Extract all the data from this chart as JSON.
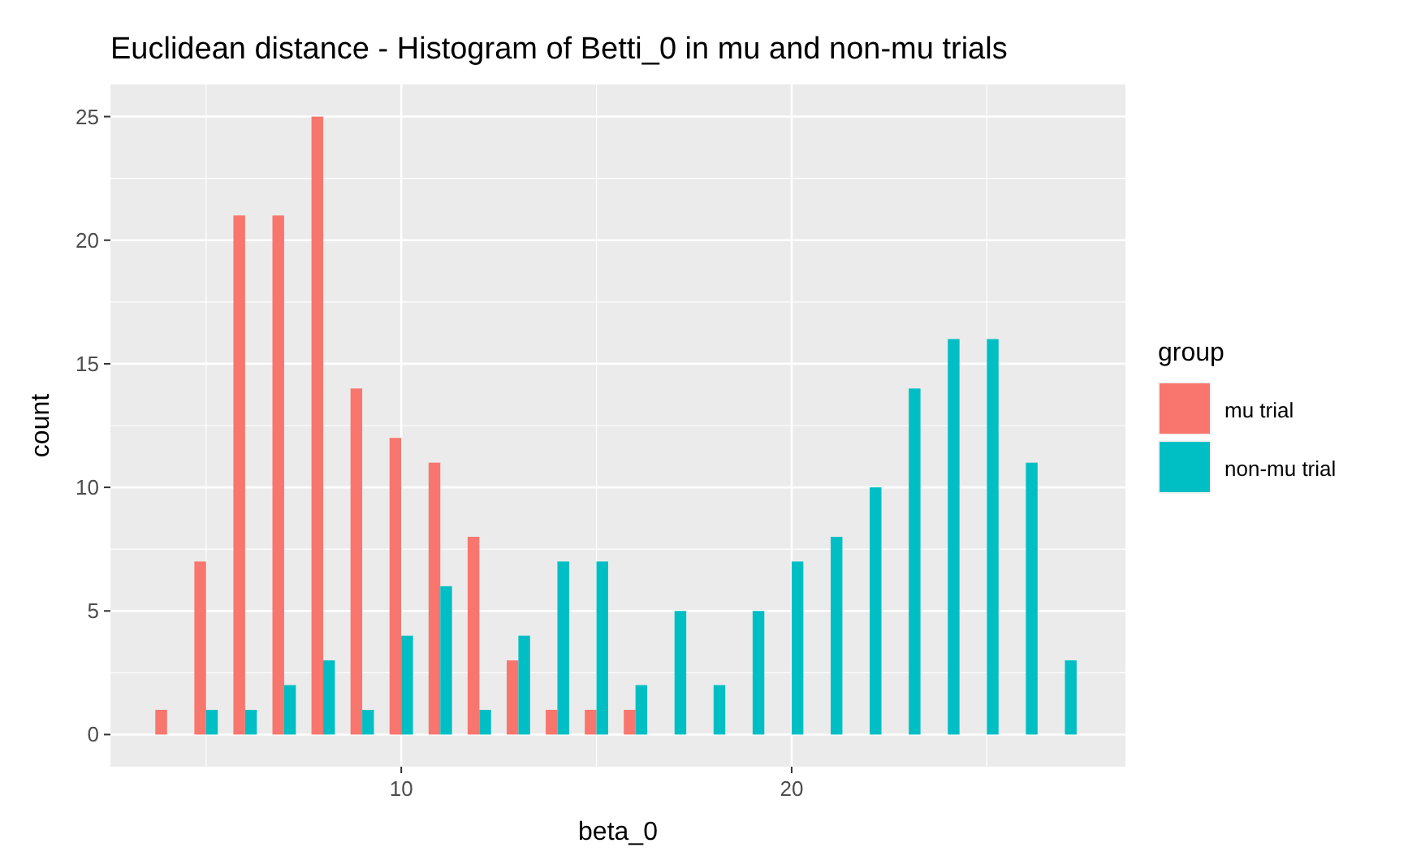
{
  "chart_data": {
    "type": "histogram",
    "title": "Euclidean distance - Histogram of Betti_0 in mu and non-mu trials",
    "xlabel": "beta_0",
    "ylabel": "count",
    "legend_title": "group",
    "bins": [
      3.5,
      4.5,
      5.5,
      6.5,
      7.5,
      8.5,
      9.5,
      10.5,
      11.5,
      12.5,
      13.5,
      14.5,
      15.5,
      16.5,
      17.5,
      18.5,
      19.5,
      20.5,
      21.5,
      22.5,
      23.5,
      24.5,
      25.5,
      26.5,
      27.5
    ],
    "series": [
      {
        "name": "mu trial",
        "color": "#f8766d",
        "values": [
          1,
          7,
          21,
          21,
          25,
          14,
          12,
          11,
          8,
          3,
          1,
          1,
          1,
          0,
          0,
          0,
          0,
          0,
          0,
          0,
          0,
          0,
          0,
          0
        ]
      },
      {
        "name": "non-mu trial",
        "color": "#00bfc4",
        "values": [
          0,
          1,
          1,
          2,
          3,
          1,
          4,
          6,
          1,
          4,
          7,
          7,
          2,
          5,
          2,
          5,
          7,
          8,
          10,
          14,
          16,
          16,
          11,
          3
        ]
      }
    ],
    "xlim": [
      2.55,
      28.55
    ],
    "ylim": [
      -1.3,
      26.3
    ],
    "xticks": [
      10,
      20
    ],
    "yticks": [
      0,
      5,
      10,
      15,
      20,
      25
    ],
    "grid": true,
    "legend": "right"
  }
}
